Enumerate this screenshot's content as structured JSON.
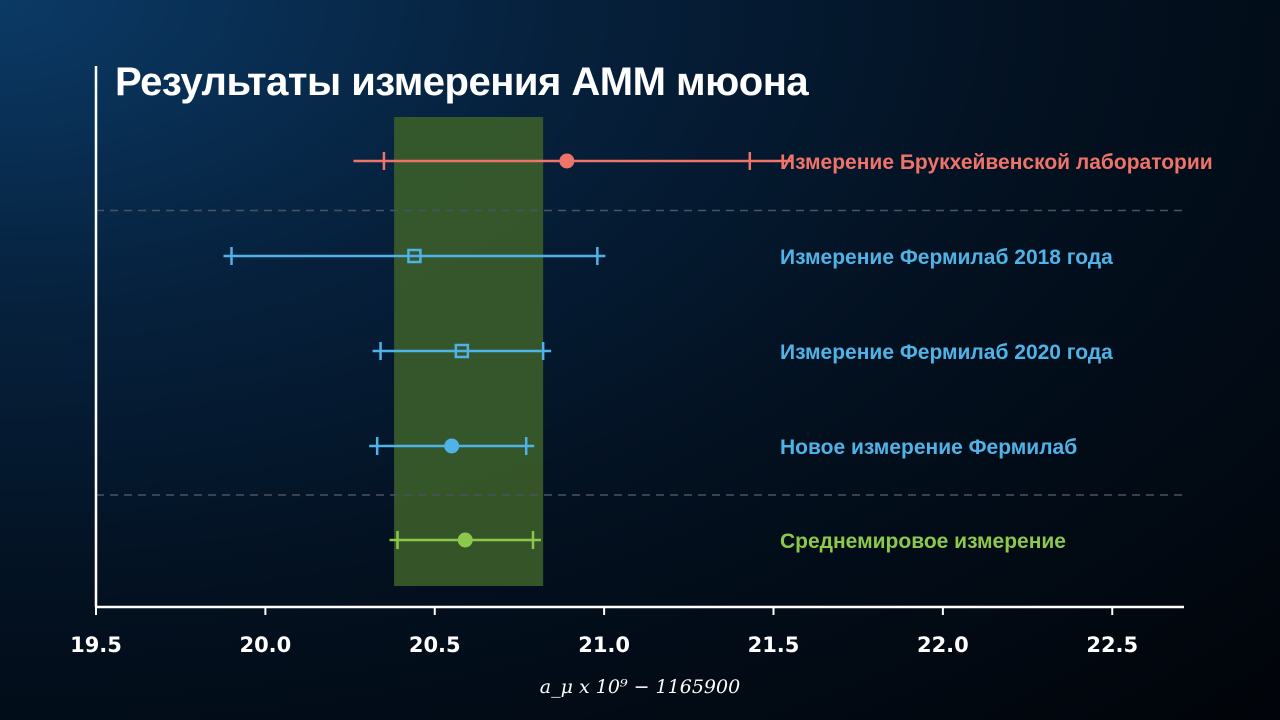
{
  "title": "Результаты измерения АММ мюона",
  "chart_data": {
    "type": "scatter",
    "title": "Результаты измерения АММ мюона",
    "xlabel": "a_μ x 10⁹ − 1165900",
    "xlim": [
      19.5,
      22.7
    ],
    "x_ticks": [
      "19.5",
      "20.0",
      "20.5",
      "21.0",
      "21.5",
      "22.0",
      "22.5"
    ],
    "x_tick_values": [
      19.5,
      20.0,
      20.5,
      21.0,
      21.5,
      22.0,
      22.5
    ],
    "band": {
      "x_min": 20.38,
      "x_max": 20.82,
      "color": "#3b5d2a"
    },
    "series": [
      {
        "name": "Измерение Брукхейвенской лаборатории",
        "value": 20.89,
        "err_low": 0.63,
        "err_high": 0.63,
        "inner_err": 0.54,
        "marker": "circle",
        "color": "#f0736a"
      },
      {
        "name": "Измерение Фермилаб 2018 года",
        "value": 20.44,
        "err_low": 0.54,
        "err_high": 0.54,
        "inner_err": null,
        "marker": "square",
        "color": "#4fb3e8"
      },
      {
        "name": "Измерение Фермилаб 2020 года",
        "value": 20.58,
        "err_low": 0.24,
        "err_high": 0.24,
        "inner_err": null,
        "marker": "square",
        "color": "#4fb3e8"
      },
      {
        "name": "Новое измерение Фермилаб",
        "value": 20.55,
        "err_low": 0.22,
        "err_high": 0.22,
        "inner_err": null,
        "marker": "circle",
        "color": "#4fb3e8"
      },
      {
        "name": "Среднемировое измерение",
        "value": 20.59,
        "err_low": 0.2,
        "err_high": 0.2,
        "inner_err": null,
        "marker": "circle",
        "color": "#8cc84b"
      }
    ],
    "grid": false,
    "separators_after_rows": [
      0,
      3
    ]
  }
}
